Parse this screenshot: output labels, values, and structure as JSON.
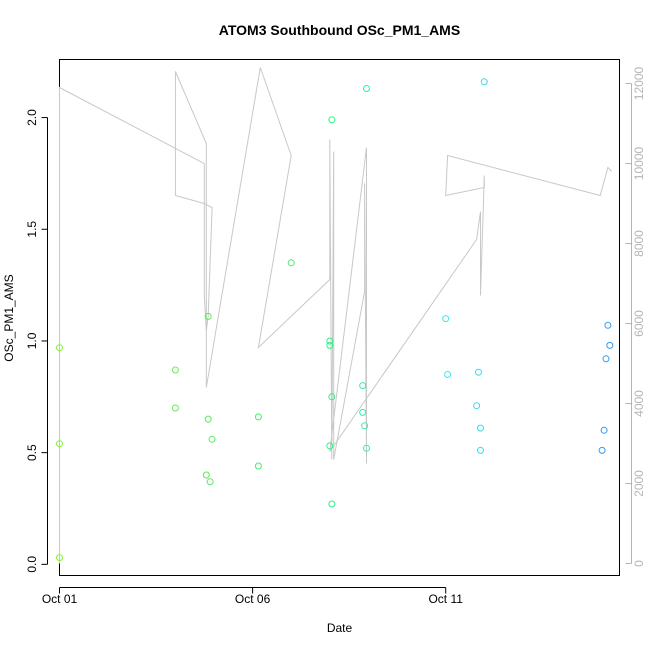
{
  "chart_data": {
    "type": "scatter",
    "title": "ATOM3 Southbound OSc_PM1_AMS",
    "xlabel": "Date",
    "ylabel": "OSc_PM1_AMS",
    "x_axis": {
      "min": 0.0,
      "max": 14.5,
      "ticks": [
        {
          "value": 0,
          "label": "Oct 01"
        },
        {
          "value": 5,
          "label": "Oct 06"
        },
        {
          "value": 10,
          "label": "Oct 11"
        }
      ]
    },
    "y_axis": {
      "min": -0.05,
      "max": 2.26,
      "ticks": [
        0.0,
        0.5,
        1.0,
        1.5,
        2.0
      ],
      "tick_labels": [
        "0.0",
        "0.5",
        "1.0",
        "1.5",
        "2.0"
      ]
    },
    "y2_axis": {
      "min": -300,
      "max": 12600,
      "ticks": [
        0,
        2000,
        4000,
        6000,
        8000,
        10000,
        12000
      ],
      "tick_labels": [
        "0",
        "2000",
        "4000",
        "6000",
        "8000",
        "10000",
        "12000"
      ],
      "color": "#b5b5b5"
    },
    "grid": false,
    "points": [
      {
        "x": 0.0,
        "y": 0.97,
        "color": "#88ee44"
      },
      {
        "x": 0.0,
        "y": 0.54,
        "color": "#88ee44"
      },
      {
        "x": 0.0,
        "y": 0.03,
        "color": "#88ee44"
      },
      {
        "x": 3.0,
        "y": 0.87,
        "color": "#66ee55"
      },
      {
        "x": 3.0,
        "y": 0.7,
        "color": "#66ee55"
      },
      {
        "x": 3.8,
        "y": 0.4,
        "color": "#55ee55"
      },
      {
        "x": 3.85,
        "y": 1.11,
        "color": "#55ee55"
      },
      {
        "x": 3.85,
        "y": 0.65,
        "color": "#55ee55"
      },
      {
        "x": 3.9,
        "y": 0.37,
        "color": "#55ee55"
      },
      {
        "x": 3.95,
        "y": 0.56,
        "color": "#55ee55"
      },
      {
        "x": 5.15,
        "y": 0.66,
        "color": "#44ee66"
      },
      {
        "x": 5.15,
        "y": 0.44,
        "color": "#44ee66"
      },
      {
        "x": 6.0,
        "y": 1.35,
        "color": "#44ee66"
      },
      {
        "x": 7.0,
        "y": 0.98,
        "color": "#33ee88"
      },
      {
        "x": 7.0,
        "y": 1.0,
        "color": "#33ee88"
      },
      {
        "x": 7.05,
        "y": 1.99,
        "color": "#33ee88"
      },
      {
        "x": 7.05,
        "y": 0.75,
        "color": "#33ee88"
      },
      {
        "x": 7.0,
        "y": 0.53,
        "color": "#33ee88"
      },
      {
        "x": 7.05,
        "y": 0.27,
        "color": "#33ee88"
      },
      {
        "x": 7.85,
        "y": 0.8,
        "color": "#33eeaa"
      },
      {
        "x": 7.85,
        "y": 0.68,
        "color": "#33eeaa"
      },
      {
        "x": 7.9,
        "y": 0.62,
        "color": "#33eeaa"
      },
      {
        "x": 7.95,
        "y": 0.52,
        "color": "#33eeaa"
      },
      {
        "x": 7.95,
        "y": 2.13,
        "color": "#33eeaa"
      },
      {
        "x": 10.0,
        "y": 1.1,
        "color": "#33eeee"
      },
      {
        "x": 10.05,
        "y": 0.85,
        "color": "#33eeee"
      },
      {
        "x": 10.8,
        "y": 0.71,
        "color": "#33ddee"
      },
      {
        "x": 10.85,
        "y": 0.86,
        "color": "#33ddee"
      },
      {
        "x": 10.9,
        "y": 0.61,
        "color": "#33ddee"
      },
      {
        "x": 10.9,
        "y": 0.51,
        "color": "#33ddee"
      },
      {
        "x": 11.0,
        "y": 2.16,
        "color": "#33ddee"
      },
      {
        "x": 14.05,
        "y": 0.51,
        "color": "#3399ee"
      },
      {
        "x": 14.1,
        "y": 0.6,
        "color": "#3399ee"
      },
      {
        "x": 14.15,
        "y": 0.92,
        "color": "#3399ee"
      },
      {
        "x": 14.2,
        "y": 1.07,
        "color": "#3399ee"
      },
      {
        "x": 14.25,
        "y": 0.98,
        "color": "#3399ee"
      }
    ],
    "secondary_line": {
      "color": "#c8c8c8",
      "points": [
        [
          0.0,
          0
        ],
        [
          0.0,
          11900
        ],
        [
          3.75,
          10000
        ],
        [
          3.75,
          6700
        ],
        [
          3.8,
          5800
        ],
        [
          3.85,
          6200
        ],
        [
          3.95,
          8900
        ],
        [
          3.75,
          9000
        ],
        [
          3.0,
          9200
        ],
        [
          3.0,
          12300
        ],
        [
          3.8,
          10500
        ],
        [
          3.8,
          4400
        ],
        [
          5.2,
          12400
        ],
        [
          6.0,
          10200
        ],
        [
          5.15,
          5400
        ],
        [
          7.0,
          7100
        ],
        [
          7.0,
          10600
        ],
        [
          7.05,
          2600
        ],
        [
          7.1,
          10300
        ],
        [
          7.1,
          2600
        ],
        [
          7.9,
          6800
        ],
        [
          7.9,
          9500
        ],
        [
          7.95,
          2500
        ],
        [
          7.95,
          10400
        ],
        [
          7.0,
          2800
        ],
        [
          10.8,
          8100
        ],
        [
          10.9,
          8800
        ],
        [
          10.9,
          6700
        ],
        [
          11.0,
          9700
        ],
        [
          11.0,
          9400
        ],
        [
          10.0,
          9200
        ],
        [
          10.05,
          10200
        ],
        [
          14.0,
          9200
        ],
        [
          14.2,
          9900
        ],
        [
          14.3,
          9800
        ]
      ]
    }
  }
}
